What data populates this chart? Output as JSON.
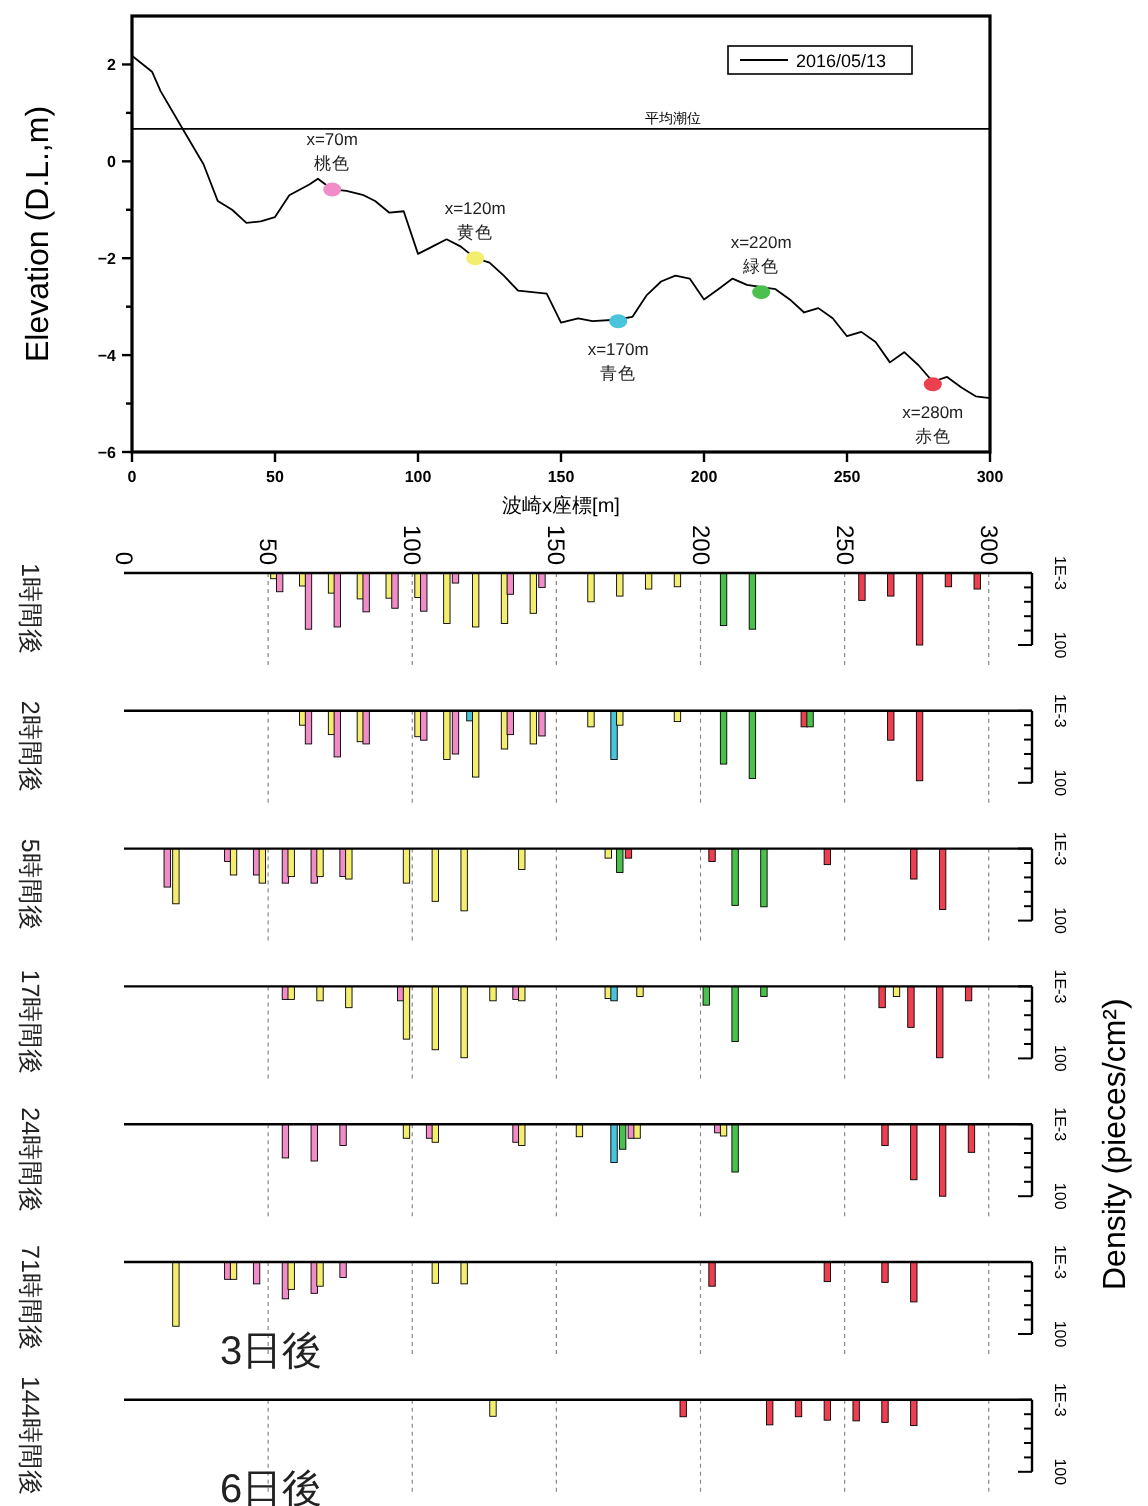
{
  "chart_data": [
    {
      "type": "line",
      "xlabel": "波崎x座標[m]",
      "ylabel": "Elevation (D.L.,m)",
      "xlim": [
        0,
        300
      ],
      "xticks": [
        0,
        50,
        100,
        150,
        200,
        250,
        300
      ],
      "ylim": [
        -6,
        3
      ],
      "yticks": [
        -6,
        {
          "value": -5,
          "label": null
        },
        -4,
        {
          "value": -3,
          "label": null
        },
        -2,
        {
          "value": -1,
          "label": null
        },
        0,
        {
          "value": 1,
          "label": null
        },
        2
      ],
      "legend": "top right",
      "series": [
        {
          "name": "2016/05/13",
          "color": "#000000",
          "x": [
            0,
            7,
            10,
            18,
            25,
            30,
            35,
            40,
            45,
            50,
            55,
            62,
            65,
            70,
            75,
            81,
            85,
            90,
            95,
            100,
            105,
            110,
            115,
            120,
            125,
            130,
            135,
            140,
            145,
            150,
            156,
            161,
            169,
            175,
            180,
            185,
            190,
            195,
            200,
            205,
            210,
            215,
            225,
            230,
            235,
            240,
            245,
            250,
            255,
            260,
            265,
            270,
            275,
            280,
            285,
            290,
            295,
            300
          ],
          "values": [
            2.18,
            1.85,
            1.45,
            0.64,
            -0.06,
            -0.82,
            -1.0,
            -1.27,
            -1.24,
            -1.15,
            -0.7,
            -0.48,
            -0.36,
            -0.58,
            -0.61,
            -0.7,
            -0.82,
            -1.06,
            -1.03,
            -1.91,
            -1.76,
            -1.61,
            -1.76,
            -2.0,
            -2.09,
            -2.36,
            -2.67,
            -2.7,
            -2.73,
            -3.33,
            -3.24,
            -3.3,
            -3.27,
            -3.21,
            -2.76,
            -2.48,
            -2.36,
            -2.42,
            -2.85,
            -2.64,
            -2.42,
            -2.55,
            -2.64,
            -2.85,
            -3.12,
            -3.03,
            -3.24,
            -3.61,
            -3.52,
            -3.73,
            -4.15,
            -3.94,
            -4.21,
            -4.55,
            -4.45,
            -4.67,
            -4.85,
            -4.89
          ]
        },
        {
          "type": "scatter",
          "x": [
            70,
            120,
            170,
            220,
            280
          ],
          "values": [
            -0.58,
            -2.0,
            -3.3,
            -2.7,
            -4.6
          ],
          "colors": [
            "#f08cc8",
            "#f4ee70",
            "#48c4dc",
            "#4cc04c",
            "#ec4050"
          ]
        }
      ],
      "ref_lines": [
        {
          "axis": "y",
          "value": 0.67,
          "label": "平均潮位",
          "color": "#000000"
        }
      ],
      "annotations": [
        {
          "text": "x=70m\n桃色",
          "x": 70,
          "y": -0.58
        },
        {
          "text": "x=120m\n黄色",
          "x": 120,
          "y": -2.0
        },
        {
          "text": "x=170m\n青色",
          "x": 170,
          "y": -3.3
        },
        {
          "text": "x=220m\n緑色",
          "x": 220,
          "y": -2.7
        },
        {
          "text": "x=280m\n赤色",
          "x": 280,
          "y": -4.6
        }
      ]
    },
    {
      "type": "bar",
      "title": "1時間後",
      "log": "y",
      "ylim": [
        100,
        0.001
      ],
      "yticks": [
        {
          "value": 0.001,
          "label": "1E-3"
        },
        {
          "value": 0.01,
          "label": null
        },
        {
          "value": 0.1,
          "label": null
        },
        {
          "value": 1,
          "label": null
        },
        {
          "value": 10,
          "label": null
        },
        100
      ],
      "xlim": [
        0,
        315
      ],
      "xticks": [
        0,
        50,
        100,
        150,
        200,
        250,
        300
      ],
      "grid": "x",
      "x": [
        52,
        54,
        62,
        64,
        72,
        74,
        82,
        84,
        92,
        94,
        102,
        104,
        112,
        115,
        122,
        132,
        134,
        142,
        145,
        162,
        172,
        182,
        192,
        208,
        218,
        256,
        266,
        276,
        286,
        296
      ],
      "values": [
        0.0025,
        0.02,
        0.008,
        8,
        0.025,
        5.6,
        0.063,
        0.5,
        0.056,
        0.28,
        0.05,
        0.45,
        3.2,
        0.005,
        5.6,
        3.2,
        0.03,
        0.63,
        0.01,
        0.1,
        0.04,
        0.013,
        0.009,
        4.5,
        8,
        0.08,
        0.04,
        100,
        0.009,
        0.013
      ],
      "colors": [
        "#f4ee70",
        "#f08cc8",
        "#f4ee70",
        "#f08cc8",
        "#f4ee70",
        "#f08cc8",
        "#f4ee70",
        "#f08cc8",
        "#f4ee70",
        "#f08cc8",
        "#f4ee70",
        "#f08cc8",
        "#f4ee70",
        "#f08cc8",
        "#f4ee70",
        "#f4ee70",
        "#f08cc8",
        "#f4ee70",
        "#f08cc8",
        "#f4ee70",
        "#f4ee70",
        "#f4ee70",
        "#f4ee70",
        "#4cc04c",
        "#4cc04c",
        "#ec4050",
        "#ec4050",
        "#ec4050",
        "#ec4050",
        "#ec4050"
      ]
    },
    {
      "type": "bar",
      "title": "2時間後",
      "log": "y",
      "ylim": [
        100,
        0.001
      ],
      "yticks": [
        {
          "value": 0.001,
          "label": "1E-3"
        },
        {
          "value": 0.01,
          "label": null
        },
        {
          "value": 0.1,
          "label": null
        },
        {
          "value": 1,
          "label": null
        },
        {
          "value": 10,
          "label": null
        },
        100
      ],
      "xlim": [
        0,
        315
      ],
      "xticks": [
        0,
        50,
        100,
        150,
        200,
        250,
        300
      ],
      "grid": "x",
      "tick_labels": "y",
      "x": [
        62,
        64,
        72,
        74,
        82,
        84,
        102,
        104,
        112,
        115,
        120,
        122,
        132,
        134,
        142,
        145,
        162,
        170,
        172,
        192,
        208,
        218,
        236,
        238,
        266,
        276
      ],
      "values": [
        0.01,
        0.2,
        0.045,
        1.6,
        0.14,
        0.2,
        0.063,
        0.11,
        2.4,
        1,
        0.005,
        40,
        0.45,
        0.045,
        0.2,
        0.056,
        0.013,
        2.4,
        0.01,
        0.0056,
        5,
        50,
        0.013,
        0.013,
        0.11,
        72
      ],
      "colors": [
        "#f4ee70",
        "#f08cc8",
        "#f4ee70",
        "#f08cc8",
        "#f4ee70",
        "#f08cc8",
        "#f4ee70",
        "#f08cc8",
        "#f4ee70",
        "#f08cc8",
        "#48c4dc",
        "#f4ee70",
        "#f4ee70",
        "#f08cc8",
        "#f4ee70",
        "#f08cc8",
        "#f4ee70",
        "#48c4dc",
        "#f4ee70",
        "#f4ee70",
        "#4cc04c",
        "#4cc04c",
        "#ec4050",
        "#4cc04c",
        "#ec4050",
        "#ec4050"
      ]
    },
    {
      "type": "bar",
      "title": "5時間後",
      "log": "y",
      "ylim": [
        100,
        0.001
      ],
      "yticks": [
        {
          "value": 0.001,
          "label": "1E-3"
        },
        {
          "value": 0.01,
          "label": null
        },
        {
          "value": 0.1,
          "label": null
        },
        {
          "value": 1,
          "label": null
        },
        {
          "value": 10,
          "label": null
        },
        100
      ],
      "xlim": [
        0,
        315
      ],
      "xticks": [
        0,
        50,
        100,
        150,
        200,
        250,
        300
      ],
      "grid": "x",
      "tick_labels": "y",
      "x": [
        15,
        18,
        36,
        38,
        46,
        48,
        56,
        58,
        66,
        68,
        76,
        78,
        98,
        108,
        118,
        138,
        168,
        172,
        175,
        204,
        212,
        222,
        244,
        274,
        284
      ],
      "values": [
        0.47,
        6.8,
        0.0078,
        0.068,
        0.068,
        0.25,
        0.25,
        0.088,
        0.25,
        0.088,
        0.088,
        0.13,
        0.25,
        4.6,
        21,
        0.028,
        0.0046,
        0.046,
        0.0046,
        0.0078,
        8.8,
        11,
        0.013,
        0.13,
        17
      ],
      "colors": [
        "#f08cc8",
        "#f4ee70",
        "#f08cc8",
        "#f4ee70",
        "#f08cc8",
        "#f4ee70",
        "#f08cc8",
        "#f4ee70",
        "#f08cc8",
        "#f4ee70",
        "#f08cc8",
        "#f4ee70",
        "#f4ee70",
        "#f4ee70",
        "#f4ee70",
        "#f4ee70",
        "#f4ee70",
        "#4cc04c",
        "#ec4050",
        "#ec4050",
        "#4cc04c",
        "#4cc04c",
        "#ec4050",
        "#ec4050",
        "#ec4050"
      ]
    },
    {
      "type": "bar",
      "title": "17時間後",
      "log": "y",
      "ylim": [
        100,
        0.001
      ],
      "yticks": [
        {
          "value": 0.001,
          "label": "1E-3"
        },
        {
          "value": 0.01,
          "label": null
        },
        {
          "value": 0.1,
          "label": null
        },
        {
          "value": 1,
          "label": null
        },
        {
          "value": 10,
          "label": null
        },
        100
      ],
      "xlim": [
        0,
        315
      ],
      "xticks": [
        0,
        50,
        100,
        150,
        200,
        250,
        300
      ],
      "grid": "x",
      "tick_labels": "y",
      "x": [
        56,
        58,
        68,
        78,
        96,
        98,
        108,
        118,
        128,
        136,
        138,
        168,
        170,
        179,
        202,
        212,
        222,
        263,
        268,
        273,
        283,
        293
      ],
      "values": [
        0.008,
        0.008,
        0.01,
        0.03,
        0.01,
        4.6,
        25,
        90,
        0.01,
        0.008,
        0.01,
        0.007,
        0.01,
        0.005,
        0.02,
        6.8,
        0.005,
        0.03,
        0.005,
        0.7,
        90,
        0.01
      ],
      "colors": [
        "#f08cc8",
        "#f4ee70",
        "#f4ee70",
        "#f4ee70",
        "#f08cc8",
        "#f4ee70",
        "#f4ee70",
        "#f4ee70",
        "#f4ee70",
        "#f08cc8",
        "#f4ee70",
        "#f4ee70",
        "#48c4dc",
        "#f4ee70",
        "#4cc04c",
        "#4cc04c",
        "#4cc04c",
        "#ec4050",
        "#f4ee70",
        "#ec4050",
        "#ec4050",
        "#ec4050"
      ]
    },
    {
      "type": "bar",
      "title": "24時間後",
      "ylabel": "Density (pieces/cm²)",
      "log": "y",
      "ylim": [
        100,
        0.001
      ],
      "yticks": [
        {
          "value": 0.001,
          "label": "1E-3"
        },
        {
          "value": 0.01,
          "label": null
        },
        {
          "value": 0.1,
          "label": null
        },
        {
          "value": 1,
          "label": null
        },
        {
          "value": 10,
          "label": null
        },
        100
      ],
      "xlim": [
        0,
        315
      ],
      "xticks": [
        0,
        50,
        100,
        150,
        200,
        250,
        300
      ],
      "grid": "x",
      "tick_labels": "y",
      "x": [
        56,
        66,
        76,
        98,
        106,
        108,
        136,
        138,
        158,
        170,
        173,
        176,
        178,
        206,
        208,
        212,
        264,
        274,
        284,
        294
      ],
      "values": [
        0.22,
        0.36,
        0.03,
        0.0095,
        0.0095,
        0.018,
        0.018,
        0.03,
        0.0074,
        0.46,
        0.055,
        0.0095,
        0.0095,
        0.004,
        0.0066,
        2.1,
        0.03,
        7.2,
        100,
        0.09
      ],
      "colors": [
        "#f08cc8",
        "#f08cc8",
        "#f08cc8",
        "#f4ee70",
        "#f08cc8",
        "#f4ee70",
        "#f08cc8",
        "#f4ee70",
        "#f4ee70",
        "#48c4dc",
        "#4cc04c",
        "#f08cc8",
        "#f4ee70",
        "#f08cc8",
        "#f4ee70",
        "#4cc04c",
        "#ec4050",
        "#ec4050",
        "#ec4050",
        "#ec4050"
      ]
    },
    {
      "type": "bar",
      "title": "71時間後",
      "annotations": [
        "3日後"
      ],
      "log": "y",
      "ylim": [
        100,
        0.001
      ],
      "yticks": [
        {
          "value": 0.001,
          "label": "1E-3"
        },
        {
          "value": 0.01,
          "label": null
        },
        {
          "value": 0.1,
          "label": null
        },
        {
          "value": 1,
          "label": null
        },
        {
          "value": 10,
          "label": null
        },
        100
      ],
      "xlim": [
        0,
        315
      ],
      "xticks": [
        0,
        50,
        100,
        150,
        200,
        250,
        300
      ],
      "grid": "x",
      "tick_labels": "y",
      "x": [
        18,
        36,
        38,
        46,
        56,
        58,
        66,
        68,
        76,
        108,
        118,
        204,
        244,
        264,
        274
      ],
      "values": [
        29,
        0.016,
        0.016,
        0.033,
        0.36,
        0.08,
        0.15,
        0.048,
        0.012,
        0.03,
        0.033,
        0.048,
        0.023,
        0.026,
        0.59
      ],
      "colors": [
        "#f4ee70",
        "#f08cc8",
        "#f4ee70",
        "#f08cc8",
        "#f08cc8",
        "#f4ee70",
        "#f08cc8",
        "#f4ee70",
        "#f08cc8",
        "#f4ee70",
        "#f4ee70",
        "#ec4050",
        "#ec4050",
        "#ec4050",
        "#ec4050"
      ]
    },
    {
      "type": "bar",
      "title": "144時間後",
      "annotations": [
        "6日後"
      ],
      "log": "y",
      "ylim": [
        100,
        0.001
      ],
      "yticks": [
        {
          "value": 0.001,
          "label": "1E-3"
        },
        {
          "value": 0.01,
          "label": null
        },
        {
          "value": 0.1,
          "label": null
        },
        {
          "value": 1,
          "label": null
        },
        {
          "value": 10,
          "label": null
        },
        100
      ],
      "xlim": [
        0,
        315
      ],
      "xticks": [
        0,
        50,
        100,
        150,
        200,
        250,
        300
      ],
      "grid": "x",
      "tick_labels": "y",
      "x": [
        128,
        194,
        224,
        234,
        244,
        254,
        264,
        274
      ],
      "values": [
        0.014,
        0.015,
        0.055,
        0.015,
        0.026,
        0.029,
        0.037,
        0.062
      ],
      "colors": [
        "#f4ee70",
        "#ec4050",
        "#ec4050",
        "#ec4050",
        "#ec4050",
        "#ec4050",
        "#ec4050",
        "#ec4050"
      ]
    }
  ]
}
